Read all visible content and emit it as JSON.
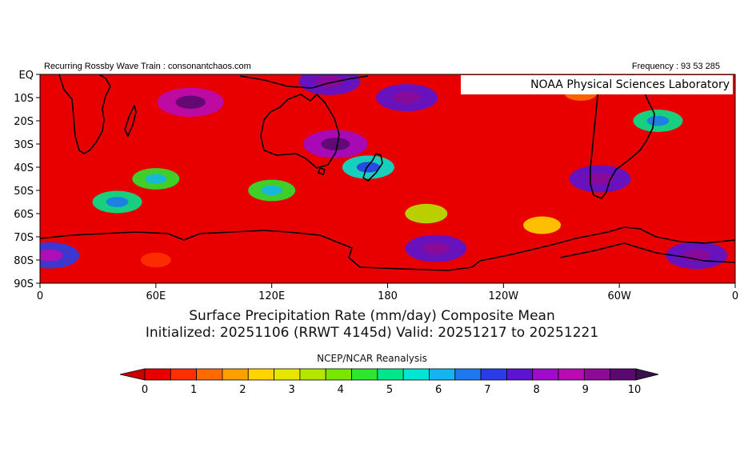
{
  "header": {
    "left": "Recurring Rossby Wave Train : consonantchaos.com",
    "right": "Frequency : 93 53 285",
    "lab_banner": "NOAA Physical Sciences Laboratory"
  },
  "title_line1": "Surface Precipitation Rate (mm/day) Composite Mean",
  "title_line2": "Initialized: 20251106 (RRWT 4145d) Valid: 20251217 to 20251221",
  "source": "NCEP/NCAR Reanalysis",
  "chart_data": {
    "type": "heatmap",
    "title": "Surface Precipitation Rate (mm/day) Composite Mean",
    "subtitle": "Initialized: 20251106 (RRWT 4145d) Valid: 20251217 to 20251221",
    "x_ticks": [
      "0",
      "60E",
      "120E",
      "180",
      "120W",
      "60W",
      "0"
    ],
    "x_tick_lon": [
      0,
      60,
      120,
      180,
      240,
      300,
      360
    ],
    "y_ticks": [
      "EQ",
      "10S",
      "20S",
      "30S",
      "40S",
      "50S",
      "60S",
      "70S",
      "80S",
      "90S"
    ],
    "y_tick_lat": [
      0,
      -10,
      -20,
      -30,
      -40,
      -50,
      -60,
      -70,
      -80,
      -90
    ],
    "xlim": [
      0,
      360
    ],
    "ylim": [
      -90,
      0
    ],
    "colorbar": {
      "labels": [
        "0",
        "1",
        "2",
        "3",
        "4",
        "5",
        "6",
        "7",
        "8",
        "9",
        "10"
      ],
      "range": [
        0,
        10
      ],
      "low_color": "#c80000",
      "high_color": "#3a0f4d",
      "colors": [
        "#e80000",
        "#ff3000",
        "#ff6a00",
        "#ffa000",
        "#ffd400",
        "#e6e600",
        "#b4e600",
        "#78e600",
        "#2ee62e",
        "#00e68c",
        "#00e6d2",
        "#14b4f0",
        "#1e78f0",
        "#2a3ce6",
        "#5a14d2",
        "#a00ac8",
        "#b90ab4",
        "#8c0a96",
        "#5a0a6e"
      ]
    },
    "regions_mm_day": [
      {
        "lon": 78,
        "lat": -12,
        "value": 8.5
      },
      {
        "lon": 150,
        "lat": -3,
        "value": 7.5
      },
      {
        "lon": 190,
        "lat": -10,
        "value": 7.5
      },
      {
        "lon": 153,
        "lat": -30,
        "value": 8.0
      },
      {
        "lon": 170,
        "lat": -40,
        "value": 5.5
      },
      {
        "lon": 120,
        "lat": -50,
        "value": 4.5
      },
      {
        "lon": 290,
        "lat": -45,
        "value": 7.5
      },
      {
        "lon": 320,
        "lat": -20,
        "value": 5.0
      },
      {
        "lon": 205,
        "lat": -75,
        "value": 7.5
      },
      {
        "lon": 340,
        "lat": -78,
        "value": 7.5
      },
      {
        "lon": 5,
        "lat": -78,
        "value": 7.0
      },
      {
        "lon": 60,
        "lat": -45,
        "value": 4.5
      },
      {
        "lon": 40,
        "lat": -55,
        "value": 5.0
      },
      {
        "lon": 200,
        "lat": -60,
        "value": 3.5
      },
      {
        "lon": 260,
        "lat": -65,
        "value": 2.5
      },
      {
        "lon": 280,
        "lat": -8,
        "value": 1.5
      },
      {
        "lon": 130,
        "lat": -20,
        "value": 0.5
      },
      {
        "lon": 20,
        "lat": -20,
        "value": 0.5
      },
      {
        "lon": 60,
        "lat": -80,
        "value": 1.0
      },
      {
        "lon": 350,
        "lat": -30,
        "value": 0.5
      }
    ]
  }
}
